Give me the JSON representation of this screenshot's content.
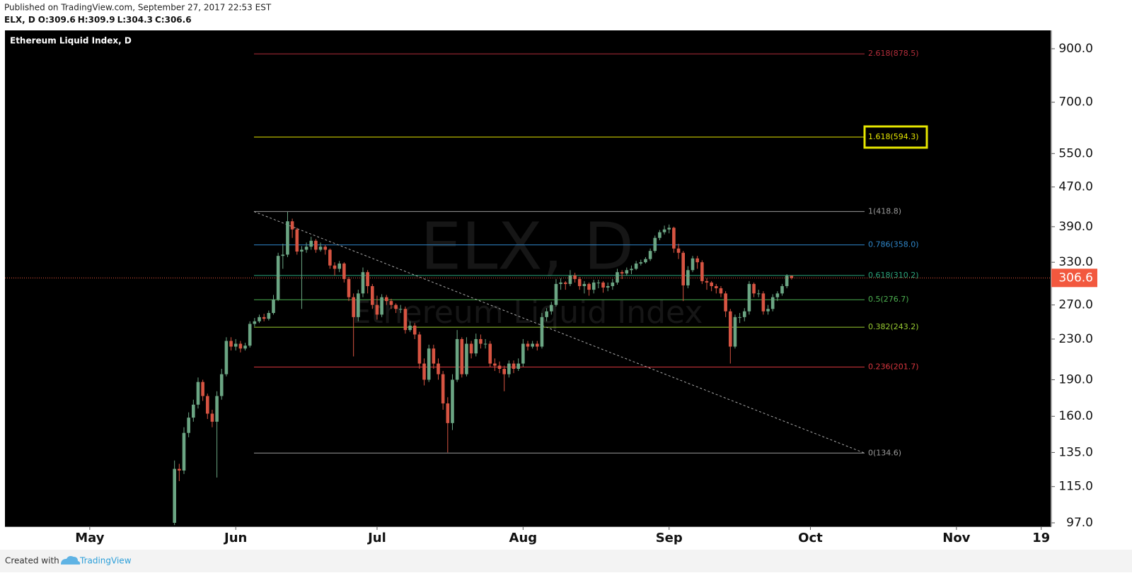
{
  "header": {
    "published": "Published on TradingView.com, September 27, 2017 22:53 EST"
  },
  "footer": {
    "created_with": "Created with",
    "brand": "TradingView"
  },
  "chart_data": {
    "type": "candlestick",
    "title": "Ethereum Liquid Index, D",
    "symbol": "ELX, D",
    "ohlc_labels": [
      "O:",
      "H:",
      "L:",
      "C:"
    ],
    "watermark_title": "ELX, D",
    "watermark_subtitle": "Ethereum Liquid Index",
    "log_scale": true,
    "up_color": "#6ba583",
    "down_color": "#d75442",
    "last_price_color": "#f2583e",
    "xlim": [
      "2017-04-13",
      "2017-11-21"
    ],
    "xticks": [
      {
        "value": "2017-05-01",
        "label": "May"
      },
      {
        "value": "2017-06-01",
        "label": "Jun"
      },
      {
        "value": "2017-07-01",
        "label": "Jul"
      },
      {
        "value": "2017-08-01",
        "label": "Aug"
      },
      {
        "value": "2017-09-01",
        "label": "Sep"
      },
      {
        "value": "2017-10-01",
        "label": "Oct"
      },
      {
        "value": "2017-11-01",
        "label": "Nov"
      },
      {
        "value": "2017-11-19",
        "label": "19"
      }
    ],
    "ylim": [
      95.4,
      981
    ],
    "yticks": [
      {
        "value": 97,
        "label": "97.0"
      },
      {
        "value": 115,
        "label": "115.0"
      },
      {
        "value": 135,
        "label": "135.0"
      },
      {
        "value": 160,
        "label": "160.0"
      },
      {
        "value": 190,
        "label": "190.0"
      },
      {
        "value": 230,
        "label": "230.0"
      },
      {
        "value": 270,
        "label": "270.0"
      },
      {
        "value": 330,
        "label": "330.0"
      },
      {
        "value": 390,
        "label": "390.0"
      },
      {
        "value": 470,
        "label": "470.0"
      },
      {
        "value": 550,
        "label": "550.0"
      },
      {
        "value": 700,
        "label": "700.0"
      },
      {
        "value": 900,
        "label": "900.0"
      }
    ],
    "fib_levels": [
      {
        "label": "2.618(878.5)",
        "value": 878.5,
        "color": "#b22d3a"
      },
      {
        "label": "1.618(594.3)",
        "value": 594.3,
        "color": "#e6e600",
        "highlight": true
      },
      {
        "label": "1(418.8)",
        "value": 418.8,
        "color": "#9a9a9a"
      },
      {
        "label": "0.786(358.0)",
        "value": 358.0,
        "color": "#2f86c9"
      },
      {
        "label": "0.618(310.2)",
        "value": 310.2,
        "color": "#2aa37a"
      },
      {
        "label": "0.5(276.7)",
        "value": 276.7,
        "color": "#4caf50"
      },
      {
        "label": "0.382(243.2)",
        "value": 243.2,
        "color": "#9acd32"
      },
      {
        "label": "0.236(201.7)",
        "value": 201.7,
        "color": "#d9363e"
      },
      {
        "label": "0(134.6)",
        "value": 134.6,
        "color": "#9a9a9a"
      }
    ],
    "x": [
      "2017-05-19",
      "2017-05-20",
      "2017-05-21",
      "2017-05-22",
      "2017-05-23",
      "2017-05-24",
      "2017-05-25",
      "2017-05-26",
      "2017-05-27",
      "2017-05-28",
      "2017-05-29",
      "2017-05-30",
      "2017-05-31",
      "2017-06-01",
      "2017-06-02",
      "2017-06-03",
      "2017-06-04",
      "2017-06-05",
      "2017-06-06",
      "2017-06-07",
      "2017-06-08",
      "2017-06-09",
      "2017-06-10",
      "2017-06-11",
      "2017-06-12",
      "2017-06-13",
      "2017-06-14",
      "2017-06-15",
      "2017-06-16",
      "2017-06-17",
      "2017-06-18",
      "2017-06-19",
      "2017-06-20",
      "2017-06-21",
      "2017-06-22",
      "2017-06-23",
      "2017-06-24",
      "2017-06-25",
      "2017-06-26",
      "2017-06-27",
      "2017-06-28",
      "2017-06-29",
      "2017-06-30",
      "2017-07-01",
      "2017-07-02",
      "2017-07-03",
      "2017-07-04",
      "2017-07-05",
      "2017-07-06",
      "2017-07-07",
      "2017-07-08",
      "2017-07-09",
      "2017-07-10",
      "2017-07-11",
      "2017-07-12",
      "2017-07-13",
      "2017-07-14",
      "2017-07-15",
      "2017-07-16",
      "2017-07-17",
      "2017-07-18",
      "2017-07-19",
      "2017-07-20",
      "2017-07-21",
      "2017-07-22",
      "2017-07-23",
      "2017-07-24",
      "2017-07-25",
      "2017-07-26",
      "2017-07-27",
      "2017-07-28",
      "2017-07-29",
      "2017-07-30",
      "2017-07-31",
      "2017-08-01",
      "2017-08-02",
      "2017-08-03",
      "2017-08-04",
      "2017-08-05",
      "2017-08-06",
      "2017-08-07",
      "2017-08-08",
      "2017-08-09",
      "2017-08-10",
      "2017-08-11",
      "2017-08-12",
      "2017-08-13",
      "2017-08-14",
      "2017-08-15",
      "2017-08-16",
      "2017-08-17",
      "2017-08-18",
      "2017-08-19",
      "2017-08-20",
      "2017-08-21",
      "2017-08-22",
      "2017-08-23",
      "2017-08-24",
      "2017-08-25",
      "2017-08-26",
      "2017-08-27",
      "2017-08-28",
      "2017-08-29",
      "2017-08-30",
      "2017-08-31",
      "2017-09-01",
      "2017-09-02",
      "2017-09-03",
      "2017-09-04",
      "2017-09-05",
      "2017-09-06",
      "2017-09-07",
      "2017-09-08",
      "2017-09-09",
      "2017-09-10",
      "2017-09-11",
      "2017-09-12",
      "2017-09-13",
      "2017-09-14",
      "2017-09-15",
      "2017-09-16",
      "2017-09-17",
      "2017-09-18",
      "2017-09-19",
      "2017-09-20",
      "2017-09-21",
      "2017-09-22",
      "2017-09-23",
      "2017-09-24",
      "2017-09-25",
      "2017-09-26",
      "2017-09-27"
    ],
    "open": [
      97,
      125,
      124,
      148,
      159,
      169,
      188,
      176,
      162,
      156,
      176,
      195,
      228,
      222,
      225,
      220,
      223,
      247,
      250,
      255,
      253,
      260,
      277,
      340,
      342,
      400,
      385,
      347,
      350,
      355,
      365,
      350,
      355,
      350,
      325,
      320,
      328,
      305,
      280,
      255,
      285,
      315,
      295,
      270,
      258,
      280,
      275,
      270,
      265,
      265,
      240,
      245,
      235,
      205,
      190,
      220,
      205,
      195,
      170,
      155,
      190,
      230,
      195,
      225,
      215,
      230,
      225,
      225,
      205,
      203,
      200,
      195,
      205,
      200,
      205,
      225,
      222,
      225,
      222,
      255,
      262,
      270,
      298,
      300,
      298,
      310,
      305,
      295,
      298,
      290,
      300,
      300,
      293,
      295,
      300,
      315,
      313,
      318,
      320,
      328,
      330,
      335,
      348,
      370,
      380,
      385,
      388,
      352,
      345,
      296,
      318,
      336,
      330,
      302,
      300,
      295,
      292,
      285,
      262,
      222,
      255,
      255,
      262,
      298,
      285,
      285,
      262,
      265,
      280,
      285,
      295,
      309.6
    ],
    "high": [
      130,
      128,
      152,
      163,
      173,
      192,
      190,
      178,
      165,
      180,
      200,
      232,
      232,
      230,
      228,
      226,
      250,
      254,
      258,
      259,
      263,
      283,
      345,
      360,
      418,
      405,
      388,
      356,
      362,
      372,
      368,
      362,
      358,
      352,
      330,
      332,
      330,
      308,
      285,
      290,
      322,
      318,
      298,
      282,
      284,
      283,
      278,
      272,
      270,
      268,
      250,
      248,
      238,
      210,
      224,
      224,
      210,
      198,
      175,
      195,
      240,
      232,
      232,
      228,
      236,
      235,
      230,
      228,
      210,
      207,
      203,
      208,
      208,
      210,
      230,
      228,
      228,
      228,
      260,
      266,
      274,
      305,
      306,
      302,
      318,
      314,
      308,
      302,
      300,
      304,
      304,
      302,
      300,
      305,
      320,
      318,
      322,
      325,
      332,
      334,
      338,
      352,
      374,
      384,
      392,
      394,
      390,
      360,
      348,
      324,
      340,
      340,
      333,
      306,
      302,
      298,
      295,
      288,
      265,
      258,
      260,
      266,
      302,
      300,
      290,
      288,
      270,
      284,
      288,
      298,
      312,
      309.9
    ],
    "low": [
      96,
      118,
      122,
      145,
      156,
      166,
      172,
      158,
      152,
      120,
      173,
      193,
      218,
      218,
      216,
      218,
      221,
      244,
      248,
      250,
      251,
      258,
      275,
      320,
      338,
      370,
      342,
      265,
      345,
      350,
      345,
      347,
      342,
      320,
      310,
      315,
      300,
      275,
      212,
      250,
      280,
      285,
      265,
      252,
      255,
      270,
      265,
      260,
      260,
      236,
      238,
      230,
      200,
      185,
      188,
      200,
      190,
      165,
      135,
      150,
      188,
      192,
      193,
      210,
      212,
      220,
      220,
      202,
      198,
      196,
      180,
      192,
      196,
      198,
      202,
      218,
      220,
      218,
      220,
      250,
      258,
      268,
      290,
      290,
      295,
      300,
      290,
      285,
      282,
      285,
      292,
      286,
      288,
      290,
      297,
      305,
      310,
      312,
      318,
      325,
      328,
      332,
      345,
      366,
      376,
      378,
      345,
      335,
      275,
      292,
      315,
      320,
      298,
      290,
      288,
      285,
      280,
      255,
      205,
      220,
      248,
      250,
      258,
      280,
      280,
      258,
      258,
      262,
      275,
      282,
      292,
      304.3
    ],
    "close": [
      125,
      124,
      148,
      159,
      169,
      188,
      176,
      162,
      156,
      176,
      195,
      228,
      222,
      225,
      220,
      223,
      247,
      250,
      255,
      253,
      260,
      277,
      340,
      342,
      400,
      385,
      347,
      350,
      355,
      365,
      350,
      355,
      350,
      325,
      320,
      328,
      305,
      280,
      255,
      285,
      315,
      295,
      270,
      258,
      280,
      275,
      270,
      265,
      265,
      240,
      245,
      235,
      205,
      190,
      220,
      205,
      195,
      170,
      155,
      190,
      230,
      195,
      225,
      215,
      230,
      225,
      225,
      205,
      203,
      200,
      195,
      205,
      200,
      205,
      225,
      222,
      225,
      222,
      255,
      262,
      270,
      298,
      300,
      298,
      310,
      305,
      295,
      298,
      290,
      300,
      300,
      293,
      295,
      300,
      315,
      313,
      318,
      320,
      328,
      330,
      335,
      348,
      370,
      380,
      385,
      388,
      352,
      345,
      296,
      318,
      336,
      330,
      302,
      300,
      295,
      292,
      285,
      262,
      222,
      255,
      255,
      262,
      298,
      285,
      285,
      262,
      265,
      280,
      285,
      295,
      309.6,
      306.6
    ]
  }
}
